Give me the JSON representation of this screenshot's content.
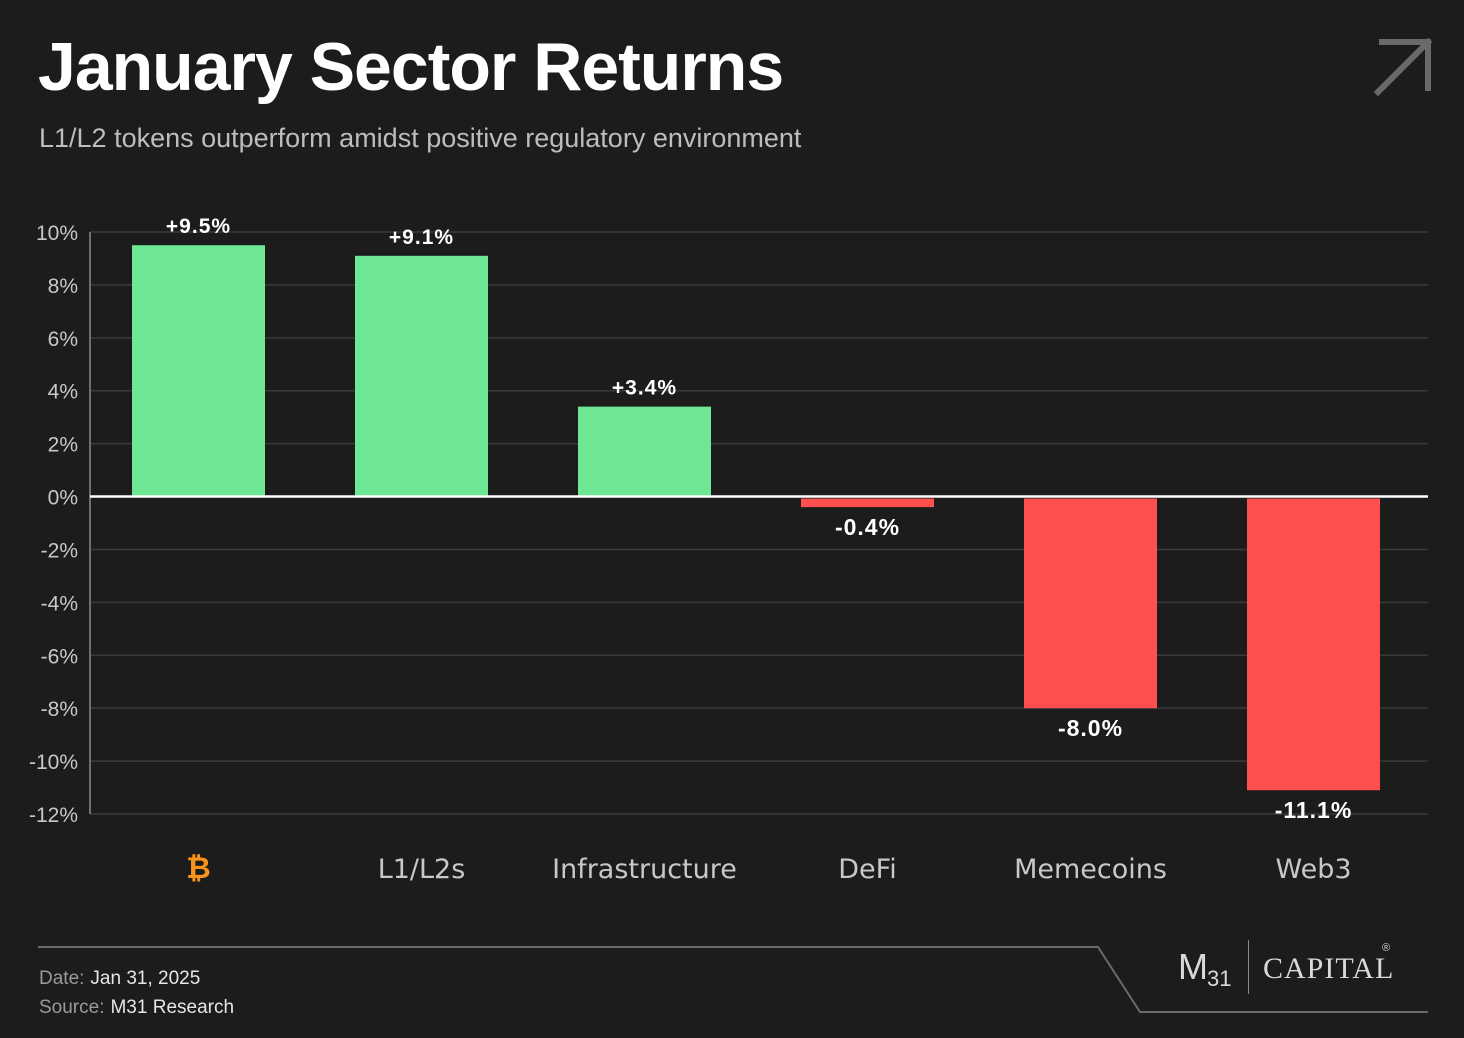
{
  "header": {
    "title": "January Sector Returns",
    "subtitle": "L1/L2 tokens outperform amidst positive regulatory environment",
    "corner_icon": "arrow-up-right-icon"
  },
  "colors": {
    "background": "#1c1c1c",
    "positive": "#6ee895",
    "negative": "#ff4f4f",
    "bitcoin": "#f7931a",
    "grid": "#3a3a3a",
    "zero_line": "#ffffff"
  },
  "chart_data": {
    "type": "bar",
    "categories": [
      "₿",
      "L1/L2s",
      "Infrastructure",
      "DeFi",
      "Memecoins",
      "Web3"
    ],
    "values": [
      9.5,
      9.1,
      3.4,
      -0.4,
      -8.0,
      -11.1
    ],
    "value_labels": [
      "+9.5%",
      "+9.1%",
      "+3.4%",
      "-0.4%",
      "-8.0%",
      "-11.1%"
    ],
    "y_ticks": [
      10,
      8,
      6,
      4,
      2,
      0,
      -2,
      -4,
      -6,
      -8,
      -10,
      -12
    ],
    "y_tick_labels": [
      "10%",
      "8%",
      "6%",
      "4%",
      "2%",
      "0%",
      "-2%",
      "-4%",
      "-6%",
      "-8%",
      "-10%",
      "-12%"
    ],
    "ylim": [
      -12,
      10
    ],
    "grid": true,
    "title": "January Sector Returns",
    "xlabel": "",
    "ylabel": ""
  },
  "footer": {
    "date_label": "Date:",
    "date_value": "Jan 31, 2025",
    "source_label": "Source:",
    "source_value": "M31 Research",
    "logo": {
      "mark": "M",
      "sub": "31",
      "name": "CAPITAL",
      "reg": "®"
    }
  }
}
